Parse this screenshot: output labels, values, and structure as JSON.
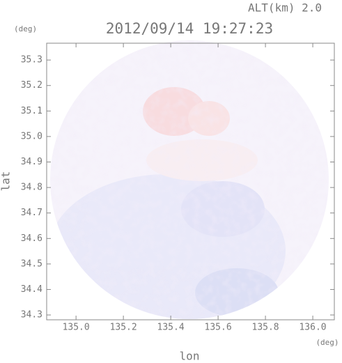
{
  "chart_data": {
    "type": "radar-image",
    "title": "2012/09/14 19:27:23",
    "annotation": "ALT(km) 2.0",
    "y_unit": "(deg)",
    "x_unit": "(deg)",
    "xlabel": "lon",
    "ylabel": "lat",
    "xlim": [
      134.876,
      136.091
    ],
    "ylim": [
      34.281,
      35.366
    ],
    "xticks": [
      {
        "value": 135.0,
        "label": "135.0"
      },
      135.2,
      135.4,
      135.6,
      135.8,
      {
        "value": 136.0,
        "label": "136.0"
      }
    ],
    "yticks": [
      34.3,
      34.4,
      34.5,
      34.6,
      34.7,
      34.8,
      34.9,
      {
        "value": 35.0,
        "label": "35.0"
      },
      35.1,
      35.2,
      35.3
    ]
  }
}
